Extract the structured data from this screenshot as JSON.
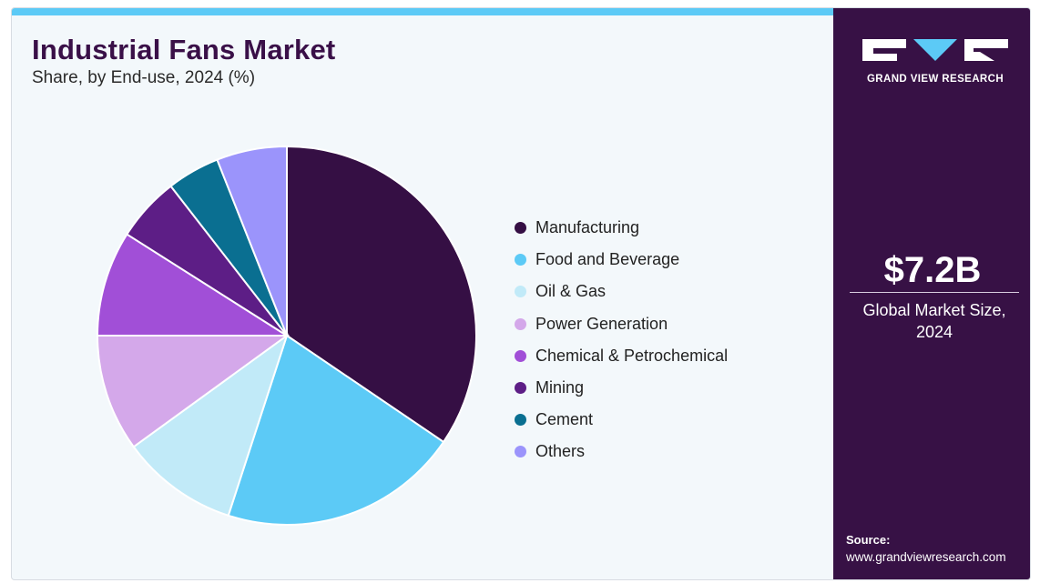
{
  "title": "Industrial Fans Market",
  "subtitle": "Share, by End-use, 2024 (%)",
  "chart_data": {
    "type": "pie",
    "title": "Industrial Fans Market",
    "subtitle": "Share, by End-use, 2024 (%)",
    "legend_position": "right",
    "categories": [
      "Manufacturing",
      "Food and Beverage",
      "Oil & Gas",
      "Power Generation",
      "Chemical & Petrochemical",
      "Mining",
      "Cement",
      "Others"
    ],
    "values": [
      34.5,
      20.5,
      10.0,
      10.0,
      9.0,
      5.5,
      4.5,
      6.0
    ],
    "colors": [
      "#350f44",
      "#5ccaf6",
      "#c1eaf8",
      "#d4a8ea",
      "#a14fd7",
      "#5d1e86",
      "#0a6f91",
      "#9b94fb"
    ]
  },
  "side_panel": {
    "logo_text": "GRAND VIEW RESEARCH",
    "market_value": "$7.2B",
    "market_caption_line1": "Global Market Size,",
    "market_caption_line2": "2024",
    "source_label": "Source:",
    "source_url": "www.grandviewresearch.com"
  }
}
